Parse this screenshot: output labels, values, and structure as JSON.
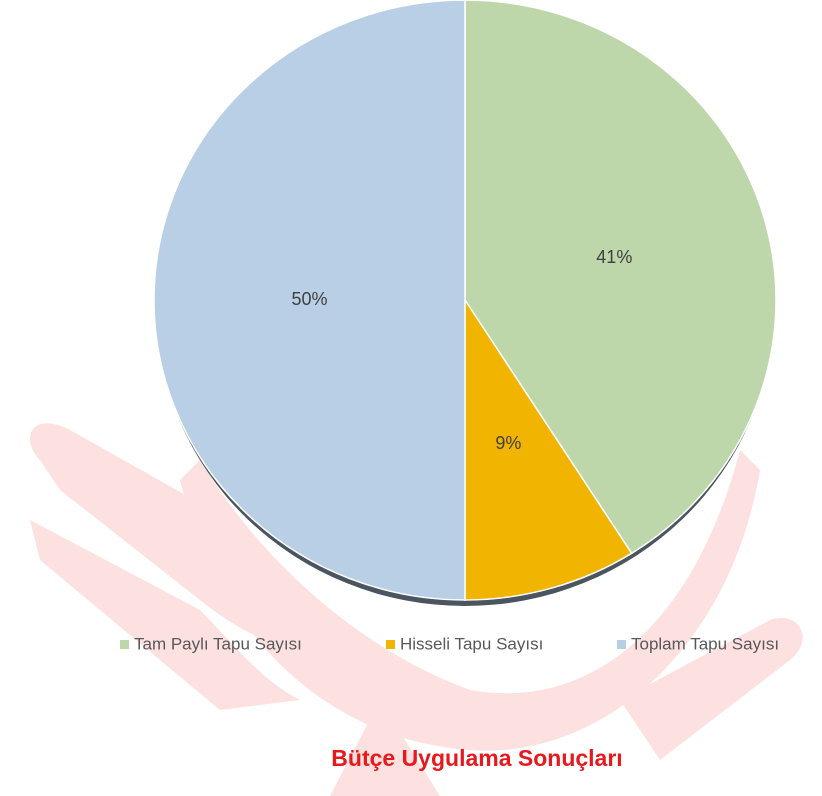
{
  "chart_data": {
    "type": "pie",
    "title": "Bütçe Uygulama Sonuçları",
    "categories": [
      "Tam Paylı Tapu Sayısı",
      "Hisseli Tapu Sayısı",
      "Toplam Tapu Sayısı"
    ],
    "values": [
      41,
      9,
      50
    ],
    "value_labels": [
      "41%",
      "9%",
      "50%"
    ],
    "colors": [
      "#bdd7aa",
      "#f1b400",
      "#b9cfe6"
    ],
    "legend": "bottom"
  }
}
